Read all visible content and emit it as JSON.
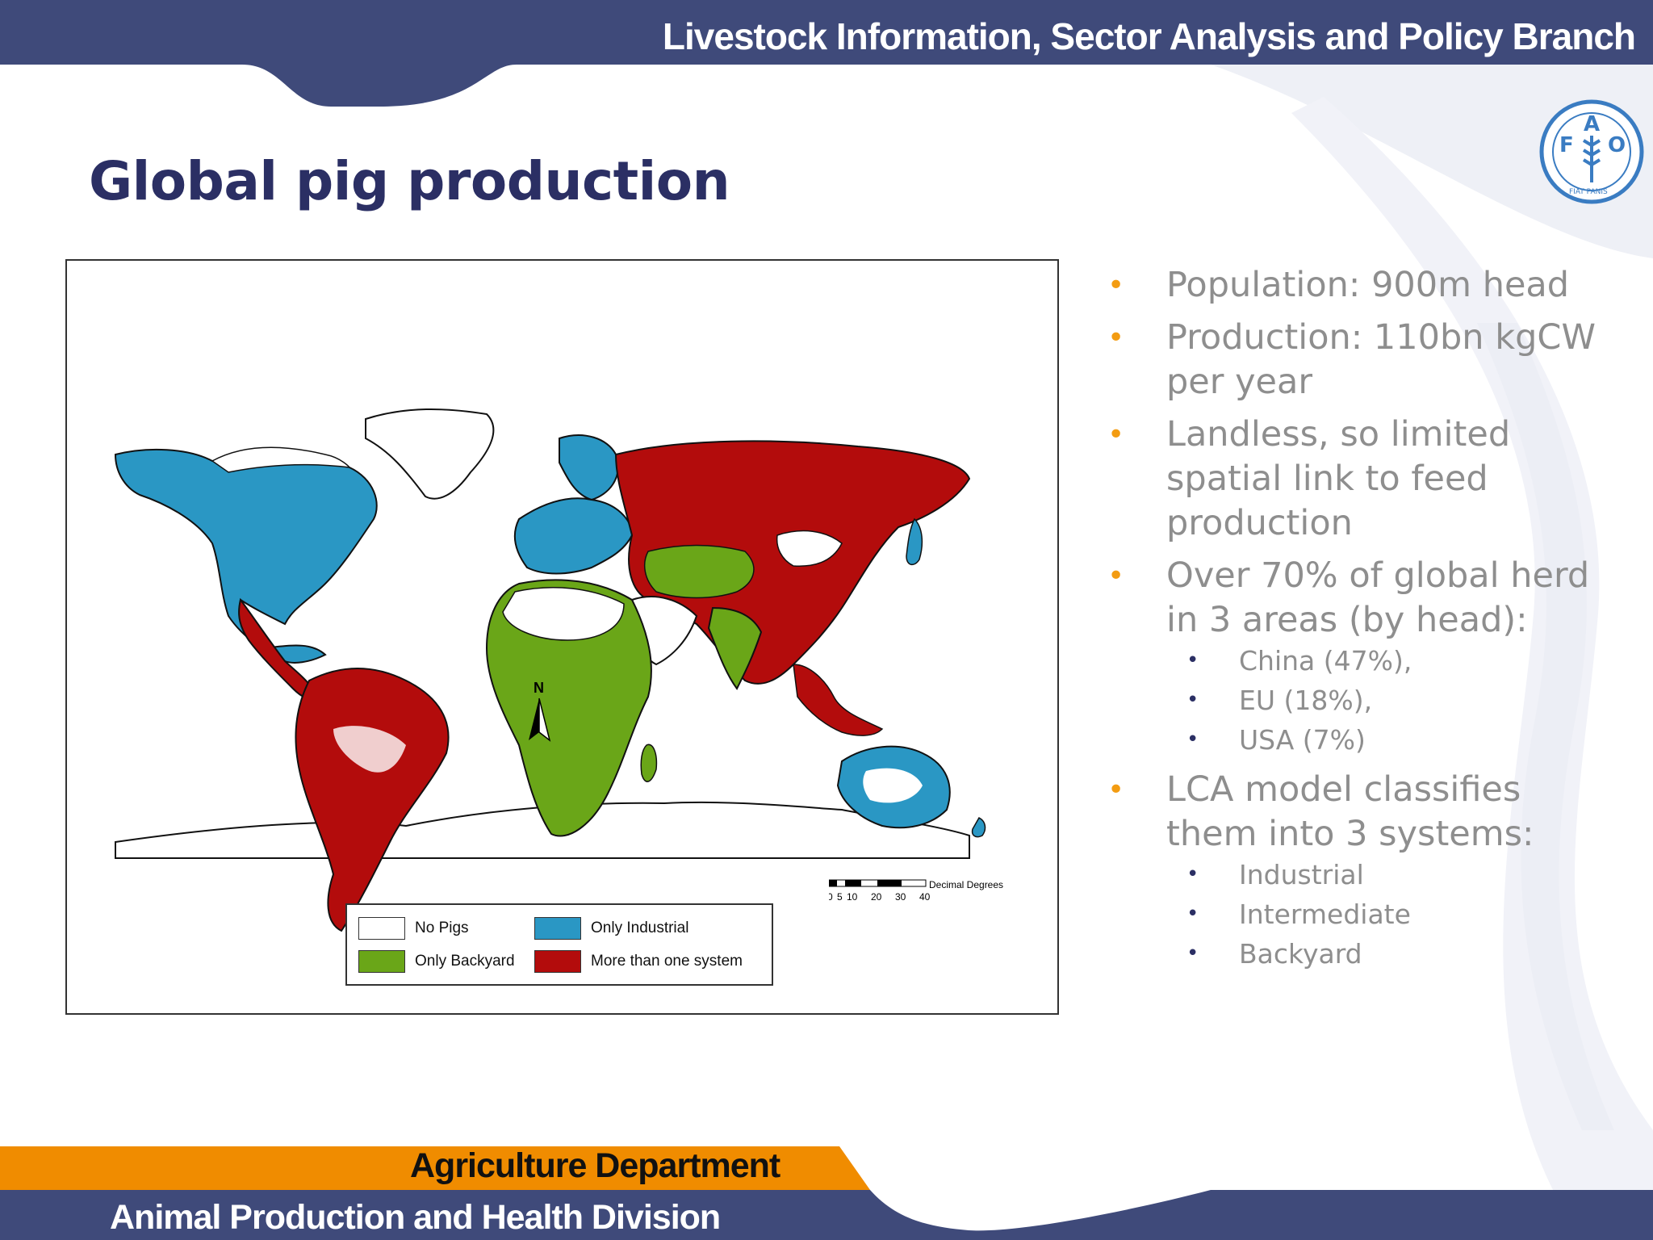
{
  "header": {
    "title": "Livestock Information, Sector Analysis and Policy Branch"
  },
  "logo": {
    "letters": [
      "F",
      "A",
      "O"
    ],
    "motto": "FIAT PANIS"
  },
  "slide": {
    "title": "Global pig production"
  },
  "map": {
    "north_label": "N",
    "scalebar": {
      "unit": "Decimal Degrees",
      "ticks": [
        "0",
        "5",
        "10",
        "20",
        "30",
        "40"
      ]
    },
    "legend": [
      {
        "label": "No Pigs",
        "color": "#ffffff"
      },
      {
        "label": "Only Industrial",
        "color": "#2a97c4"
      },
      {
        "label": "Only Backyard",
        "color": "#6aa618"
      },
      {
        "label": "More than one system",
        "color": "#b30c0c"
      }
    ]
  },
  "bullets": [
    {
      "text": "Population: 900m head"
    },
    {
      "text": "Production: 110bn kgCW per year"
    },
    {
      "text": "Landless, so limited spatial link to feed production"
    },
    {
      "text": "Over 70% of global herd in 3 areas (by head):",
      "sub": [
        "China (47%),",
        "EU (18%),",
        "USA (7%)"
      ]
    },
    {
      "text": "LCA model classifies them into 3 systems:",
      "sub": [
        "Industrial",
        "Intermediate",
        "Backyard"
      ]
    }
  ],
  "footer": {
    "department": "Agriculture Department",
    "division": "Animal Production and Health Division"
  },
  "colors": {
    "navy": "#3f4a7a",
    "orange": "#f08c00",
    "title": "#2b2f64",
    "bullet": "#f39c12",
    "text": "#8e8e8e"
  }
}
